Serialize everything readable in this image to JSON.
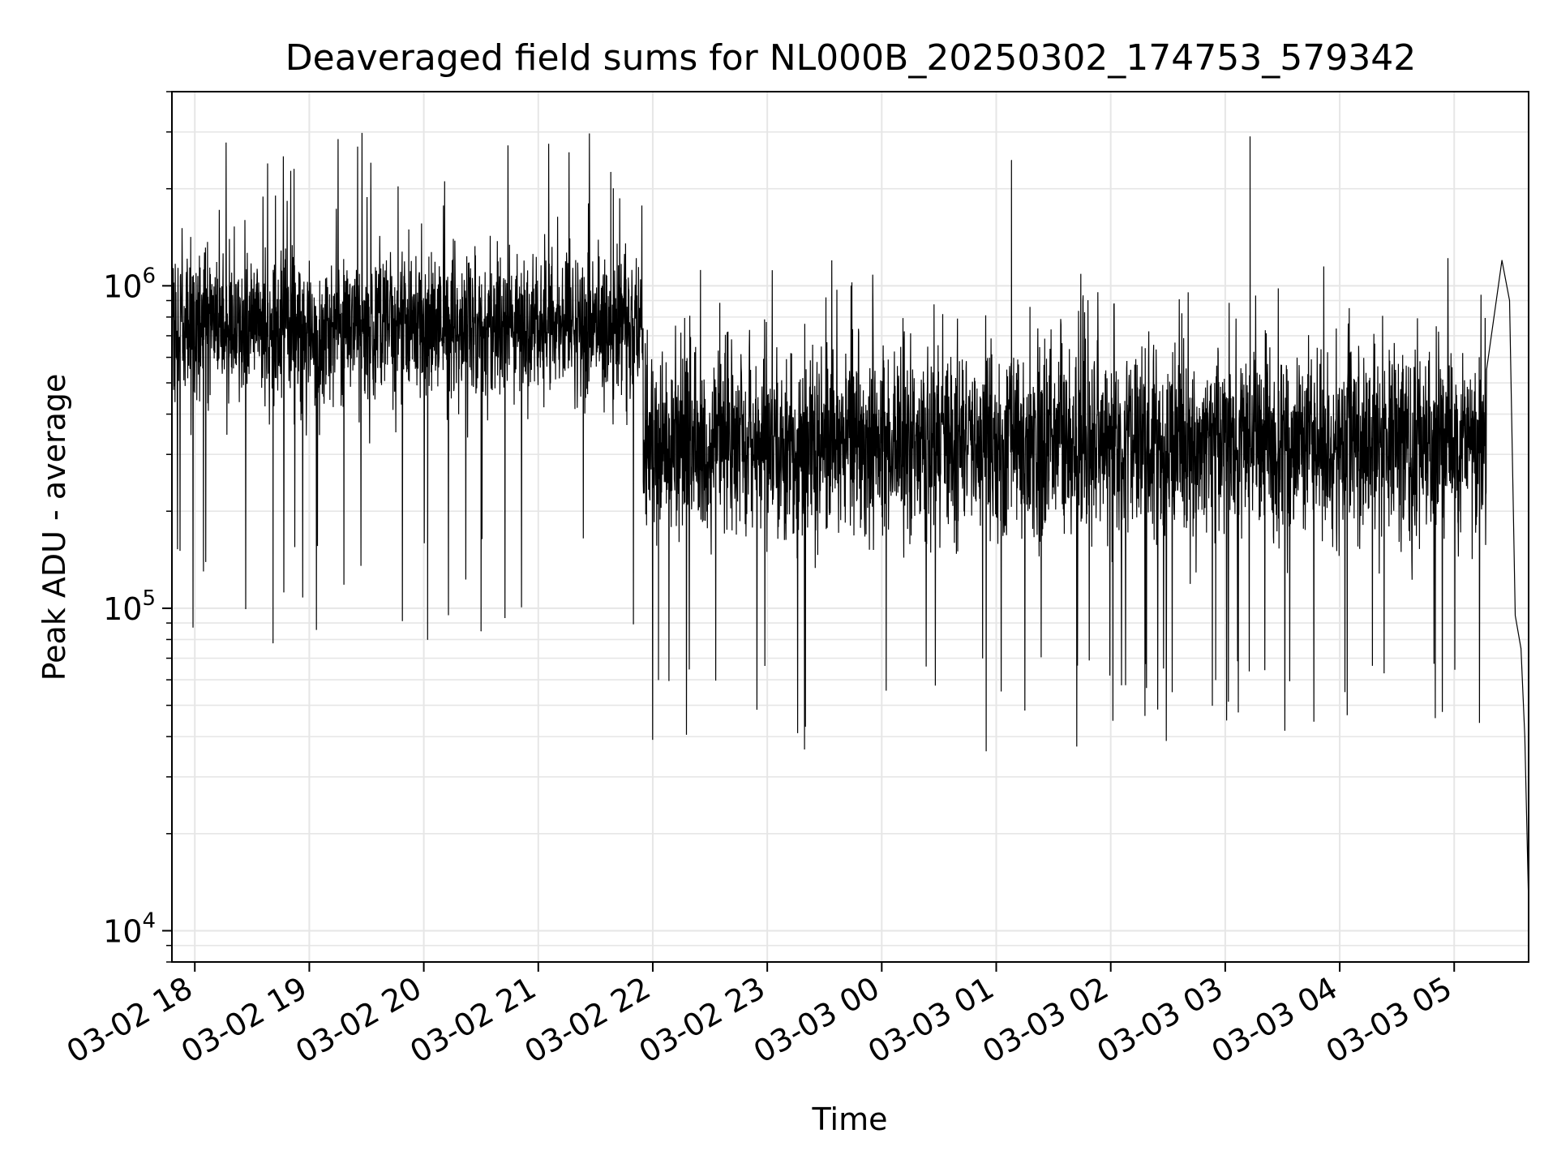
{
  "chart_data": {
    "type": "line",
    "title": "Deaveraged field sums for NL000B_20250302_174753_579342",
    "xlabel": "Time",
    "ylabel": "Peak ADU - average",
    "yscale": "log",
    "ylim": [
      8000,
      4000000
    ],
    "xlim": [
      "2025-03-02 17:48",
      "2025-03-03 05:39"
    ],
    "grid": true,
    "line_color": "#000000",
    "grid_color": "#e6e6e6",
    "x_ticks": [
      {
        "label": "03-02 18",
        "time": "2025-03-02 18:00"
      },
      {
        "label": "03-02 19",
        "time": "2025-03-02 19:00"
      },
      {
        "label": "03-02 20",
        "time": "2025-03-02 20:00"
      },
      {
        "label": "03-02 21",
        "time": "2025-03-02 21:00"
      },
      {
        "label": "03-02 22",
        "time": "2025-03-02 22:00"
      },
      {
        "label": "03-02 23",
        "time": "2025-03-02 23:00"
      },
      {
        "label": "03-03 00",
        "time": "2025-03-03 00:00"
      },
      {
        "label": "03-03 01",
        "time": "2025-03-03 01:00"
      },
      {
        "label": "03-03 02",
        "time": "2025-03-03 02:00"
      },
      {
        "label": "03-03 03",
        "time": "2025-03-03 03:00"
      },
      {
        "label": "03-03 04",
        "time": "2025-03-03 04:00"
      },
      {
        "label": "03-03 05",
        "time": "2025-03-03 05:00"
      }
    ],
    "y_ticks": [
      {
        "base": "10",
        "exp": "4",
        "value": 10000
      },
      {
        "base": "10",
        "exp": "5",
        "value": 100000
      },
      {
        "base": "10",
        "exp": "6",
        "value": 1000000
      }
    ],
    "series": [
      {
        "segments": [
          {
            "start": "2025-03-02 17:48",
            "end": "2025-03-02 21:55",
            "median": 750000,
            "spread": 0.3
          },
          {
            "start": "2025-03-02 21:55",
            "end": "2025-03-03 05:17",
            "median": 320000,
            "spread": 0.38
          }
        ],
        "points": [
          {
            "x": "2025-03-02 17:48",
            "y": 650000
          },
          {
            "x": "2025-03-02 18:41",
            "y": 78000
          },
          {
            "x": "2025-03-02 18:52",
            "y": 2300000
          },
          {
            "x": "2025-03-02 20:02",
            "y": 80000
          },
          {
            "x": "2025-03-02 20:30",
            "y": 85000
          },
          {
            "x": "2025-03-02 21:38",
            "y": 2250000
          },
          {
            "x": "2025-03-02 22:03",
            "y": 60000
          },
          {
            "x": "2025-03-02 23:20",
            "y": 43000
          },
          {
            "x": "2025-03-03 01:08",
            "y": 2450000
          },
          {
            "x": "2025-03-03 02:55",
            "y": 60000
          },
          {
            "x": "2025-03-03 03:13",
            "y": 2900000
          },
          {
            "x": "2025-03-03 05:17",
            "y": 550000
          },
          {
            "x": "2025-03-03 05:25",
            "y": 1200000
          },
          {
            "x": "2025-03-03 05:29",
            "y": 900000
          },
          {
            "x": "2025-03-03 05:32",
            "y": 95000
          },
          {
            "x": "2025-03-03 05:35",
            "y": 75000
          },
          {
            "x": "2025-03-03 05:37",
            "y": 40000
          },
          {
            "x": "2025-03-03 05:39",
            "y": 12000
          }
        ]
      }
    ]
  }
}
